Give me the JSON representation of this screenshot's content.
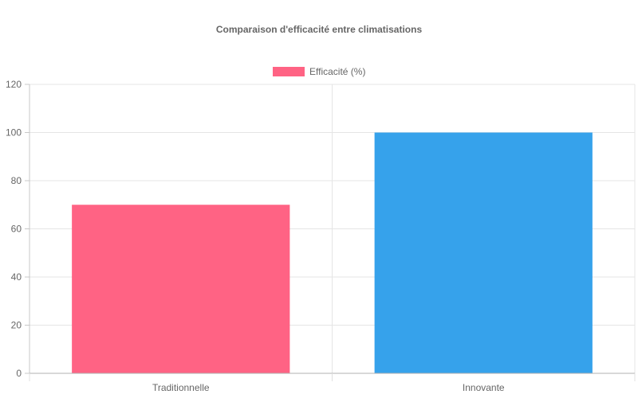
{
  "chart_data": {
    "type": "bar",
    "title": "Comparaison d'efficacité entre climatisations",
    "categories": [
      "Traditionnelle",
      "Innovante"
    ],
    "series": [
      {
        "name": "Efficacité (%)",
        "values": [
          70,
          100
        ],
        "colors": [
          "#FF6384",
          "#36A2EB"
        ]
      }
    ],
    "legend_color": "#FF6384",
    "legend_position": "top",
    "ylim": [
      0,
      120
    ],
    "yticks": [
      "0",
      "20",
      "40",
      "60",
      "80",
      "100",
      "120"
    ],
    "grid": true
  }
}
